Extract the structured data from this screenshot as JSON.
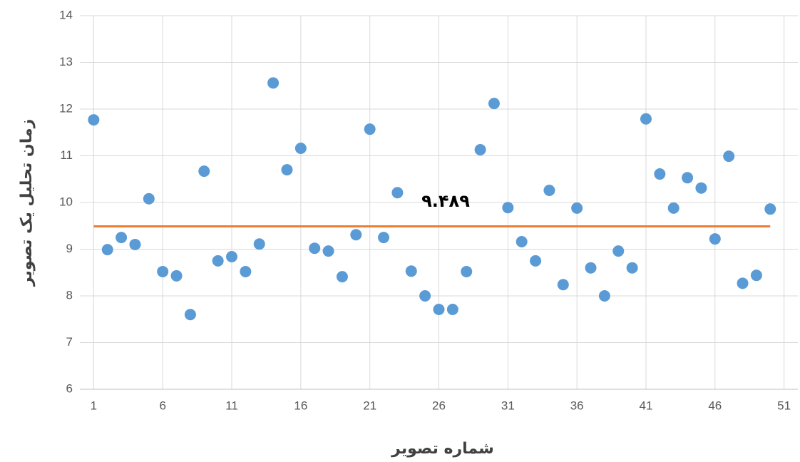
{
  "chart_data": {
    "type": "scatter",
    "x_label": "شماره تصویر",
    "y_label": "زمان تحلیل یک تصویر",
    "x": [
      1,
      2,
      3,
      4,
      5,
      6,
      7,
      8,
      9,
      10,
      11,
      12,
      13,
      14,
      15,
      16,
      17,
      18,
      19,
      20,
      21,
      22,
      23,
      24,
      25,
      26,
      27,
      28,
      29,
      30,
      31,
      32,
      33,
      34,
      35,
      36,
      37,
      38,
      39,
      40,
      41,
      42,
      43,
      44,
      45,
      46,
      47,
      48,
      49,
      50
    ],
    "values": [
      11.77,
      8.99,
      9.25,
      9.1,
      10.08,
      8.52,
      8.43,
      7.6,
      10.67,
      8.75,
      8.84,
      8.52,
      9.11,
      12.56,
      10.7,
      11.16,
      9.02,
      8.96,
      8.41,
      9.31,
      11.57,
      9.25,
      10.21,
      8.53,
      8.0,
      7.71,
      7.71,
      8.52,
      11.13,
      12.12,
      9.89,
      9.16,
      8.75,
      10.26,
      8.24,
      9.88,
      8.6,
      8.0,
      8.96,
      8.6,
      11.79,
      10.61,
      9.88,
      10.53,
      10.31,
      9.22,
      10.99,
      8.27,
      8.44,
      9.86
    ],
    "color": "#5b9bd5",
    "mean_line": {
      "value": 9.489,
      "label": "۹.۴۸۹",
      "color": "#ed7d31"
    },
    "xlim": [
      0,
      52
    ],
    "xticks": [
      1,
      6,
      11,
      16,
      21,
      26,
      31,
      36,
      41,
      46,
      51
    ],
    "ylim": [
      6,
      14
    ],
    "yticks": [
      6,
      7,
      8,
      9,
      10,
      11,
      12,
      13,
      14
    ],
    "grid": true
  }
}
